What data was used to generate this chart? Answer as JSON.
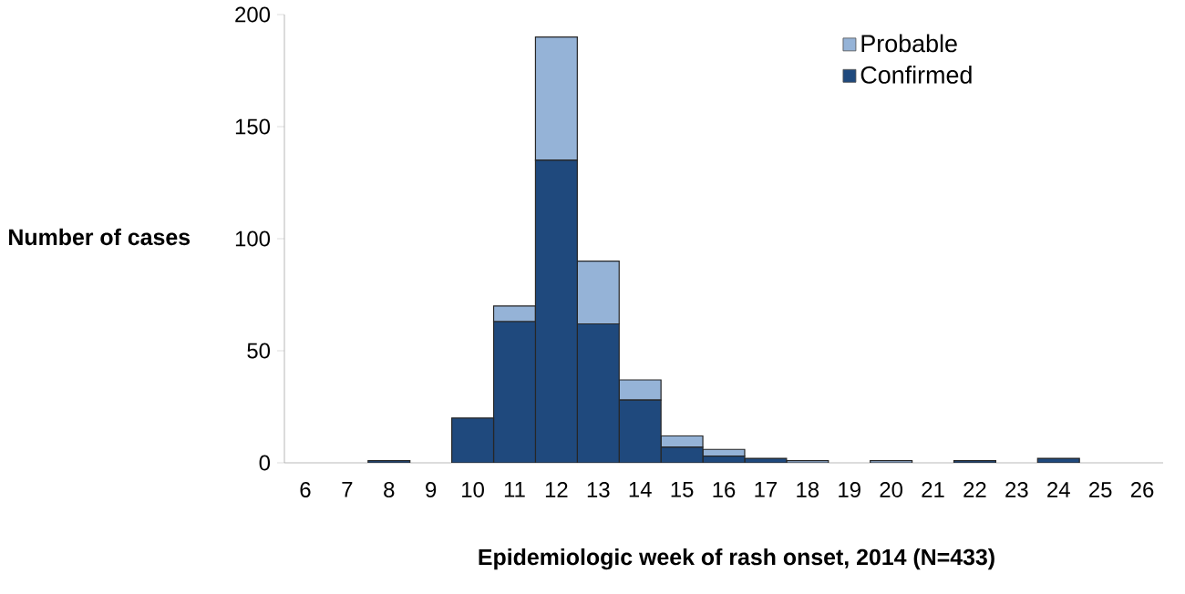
{
  "chart_data": {
    "type": "bar",
    "stacked": true,
    "categories": [
      "6",
      "7",
      "8",
      "9",
      "10",
      "11",
      "12",
      "13",
      "14",
      "15",
      "16",
      "17",
      "18",
      "19",
      "20",
      "21",
      "22",
      "23",
      "24",
      "25",
      "26"
    ],
    "series": [
      {
        "name": "Confirmed",
        "color": "#1f497d",
        "values": [
          0,
          0,
          1,
          0,
          20,
          63,
          135,
          62,
          28,
          7,
          3,
          2,
          0,
          0,
          0,
          0,
          1,
          0,
          2,
          0,
          0
        ]
      },
      {
        "name": "Probable",
        "color": "#95b3d7",
        "values": [
          0,
          0,
          0,
          0,
          0,
          7,
          55,
          28,
          9,
          5,
          3,
          0,
          1,
          0,
          1,
          0,
          0,
          0,
          0,
          0,
          0
        ]
      }
    ],
    "ylabel": "Number of cases",
    "xlabel": "Epidemiologic week of rash onset, 2014 (N=433)",
    "ylim": [
      0,
      200
    ],
    "yticks": [
      0,
      50,
      100,
      150,
      200
    ],
    "grid": false,
    "legend": "top right"
  }
}
